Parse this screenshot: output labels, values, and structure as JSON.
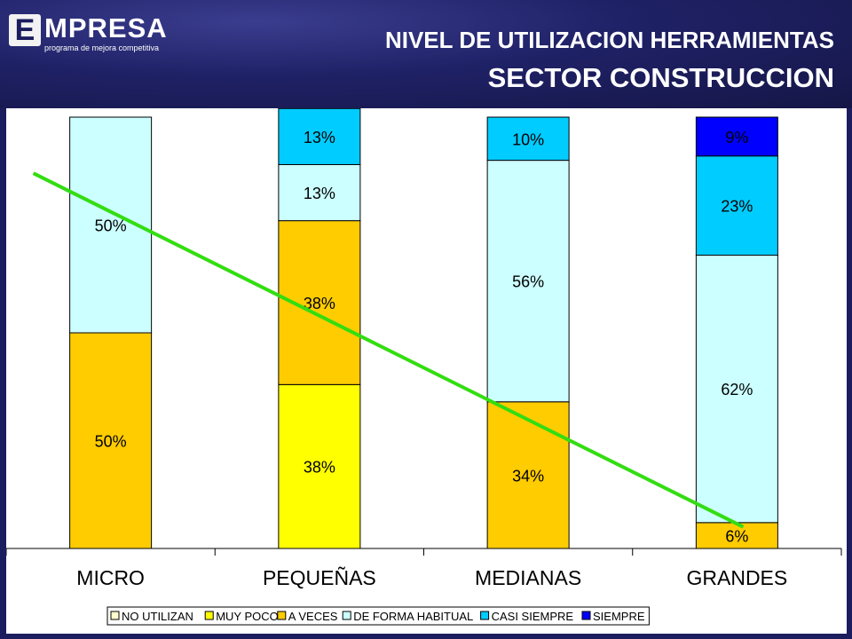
{
  "logo": {
    "letter": "E",
    "word": "MPRESA",
    "tagline": "programa de mejora competitiva"
  },
  "title": {
    "line1": "NIVEL DE UTILIZACION HERRAMIENTAS",
    "line2": "SECTOR CONSTRUCCION"
  },
  "chart_data": {
    "type": "bar",
    "stacked": true,
    "categories": [
      "MICRO",
      "PEQUEÑAS",
      "MEDIANAS",
      "GRANDES"
    ],
    "series": [
      {
        "name": "NO UTILIZAN",
        "color": "#ffffcc",
        "values": [
          0,
          0,
          0,
          0
        ]
      },
      {
        "name": "MUY POCO",
        "color": "#ffff00",
        "values": [
          0,
          38,
          0,
          0
        ]
      },
      {
        "name": "A VECES",
        "color": "#ffcc00",
        "values": [
          50,
          38,
          34,
          6
        ]
      },
      {
        "name": "DE FORMA HABITUAL",
        "color": "#ccffff",
        "values": [
          50,
          13,
          56,
          62
        ]
      },
      {
        "name": "CASI SIEMPRE",
        "color": "#00ccff",
        "values": [
          0,
          13,
          10,
          23
        ]
      },
      {
        "name": "SIEMPRE",
        "color": "#0000ff",
        "values": [
          0,
          0,
          0,
          9
        ]
      }
    ],
    "data_labels": [
      [
        "",
        "",
        "50%",
        "50%",
        "",
        ""
      ],
      [
        "",
        "38%",
        "38%",
        "13%",
        "13%",
        ""
      ],
      [
        "",
        "",
        "34%",
        "56%",
        "10%",
        ""
      ],
      [
        "",
        "",
        "6%",
        "62%",
        "23%",
        "9%"
      ]
    ],
    "ylim": [
      0,
      100
    ],
    "grid": false,
    "legend": "bottom",
    "trend_line": {
      "color": "#33dd11",
      "start": {
        "category": "MICRO",
        "y": 87
      },
      "end": {
        "category": "GRANDES",
        "y": 5
      }
    }
  }
}
